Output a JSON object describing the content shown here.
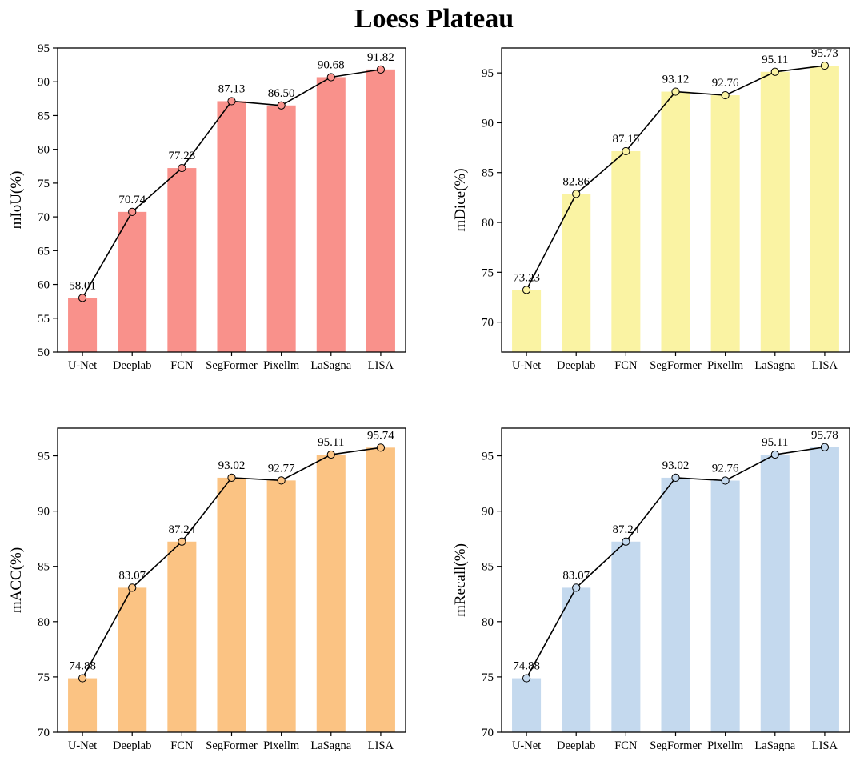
{
  "figure_title": "Loess Plateau",
  "chart_data": [
    {
      "type": "bar",
      "title": "",
      "xlabel": "",
      "ylabel": "mIoU(%)",
      "categories": [
        "U-Net",
        "Deeplab",
        "FCN",
        "SegFormer",
        "Pixellm",
        "LaSagna",
        "LISA"
      ],
      "values": [
        58.01,
        70.74,
        77.23,
        87.13,
        86.5,
        90.68,
        91.82
      ],
      "ylim": [
        50,
        95
      ],
      "yticks": [
        50,
        55,
        60,
        65,
        70,
        75,
        80,
        85,
        90,
        95
      ],
      "bar_color": "#F9918B",
      "marker_color": "#F9918B",
      "line_color": "#000000",
      "grid": false,
      "legend_position": "none",
      "overlay": "line-with-markers",
      "value_labels": true
    },
    {
      "type": "bar",
      "title": "",
      "xlabel": "",
      "ylabel": "mDice(%)",
      "categories": [
        "U-Net",
        "Deeplab",
        "FCN",
        "SegFormer",
        "Pixellm",
        "LaSagna",
        "LISA"
      ],
      "values": [
        73.23,
        82.86,
        87.15,
        93.12,
        92.76,
        95.11,
        95.73
      ],
      "ylim": [
        67,
        97.5
      ],
      "yticks": [
        70,
        75,
        80,
        85,
        90,
        95
      ],
      "bar_color": "#FAF3A3",
      "marker_color": "#FAF3A3",
      "line_color": "#000000",
      "grid": false,
      "legend_position": "none",
      "overlay": "line-with-markers",
      "value_labels": true
    },
    {
      "type": "bar",
      "title": "",
      "xlabel": "",
      "ylabel": "mACC(%)",
      "categories": [
        "U-Net",
        "Deeplab",
        "FCN",
        "SegFormer",
        "Pixellm",
        "LaSagna",
        "LISA"
      ],
      "values": [
        74.88,
        83.07,
        87.24,
        93.02,
        92.77,
        95.11,
        95.74
      ],
      "ylim": [
        70,
        97.5
      ],
      "yticks": [
        70,
        75,
        80,
        85,
        90,
        95
      ],
      "bar_color": "#FBC383",
      "marker_color": "#FBC383",
      "line_color": "#000000",
      "grid": false,
      "legend_position": "none",
      "overlay": "line-with-markers",
      "value_labels": true
    },
    {
      "type": "bar",
      "title": "",
      "xlabel": "",
      "ylabel": "mRecall(%)",
      "categories": [
        "U-Net",
        "Deeplab",
        "FCN",
        "SegFormer",
        "Pixellm",
        "LaSagna",
        "LISA"
      ],
      "values": [
        74.88,
        83.07,
        87.24,
        93.02,
        92.76,
        95.11,
        95.78
      ],
      "ylim": [
        70,
        97.5
      ],
      "yticks": [
        70,
        75,
        80,
        85,
        90,
        95
      ],
      "bar_color": "#C4D9EE",
      "marker_color": "#C4D9EE",
      "line_color": "#000000",
      "grid": false,
      "legend_position": "none",
      "overlay": "line-with-markers",
      "value_labels": true
    }
  ]
}
